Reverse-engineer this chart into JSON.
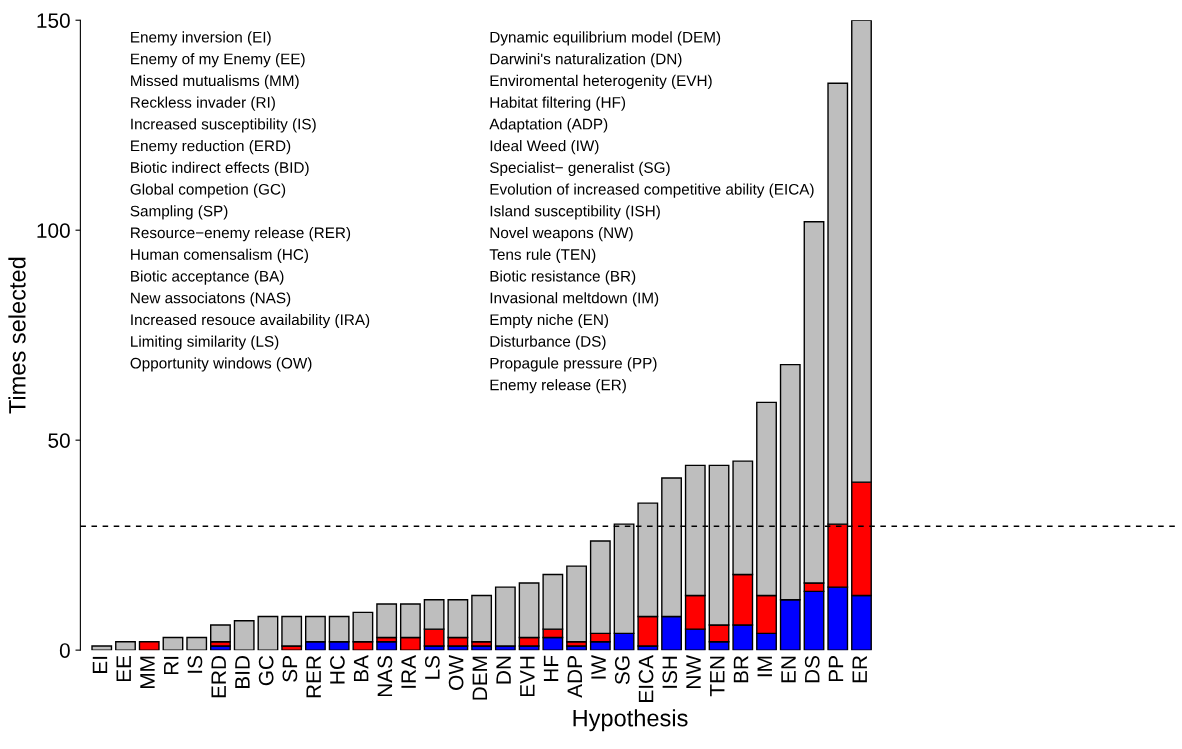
{
  "chart_data": {
    "type": "bar",
    "stacked": true,
    "xlabel": "Hypothesis",
    "ylabel": "Times selected",
    "categories": [
      "EI",
      "EE",
      "MM",
      "RI",
      "IS",
      "ERD",
      "BID",
      "GC",
      "SP",
      "RER",
      "HC",
      "BA",
      "NAS",
      "IRA",
      "LS",
      "OW",
      "DEM",
      "DN",
      "EVH",
      "HF",
      "ADP",
      "IW",
      "SG",
      "EICA",
      "ISH",
      "NW",
      "TEN",
      "BR",
      "IM",
      "EN",
      "DS",
      "PP",
      "ER"
    ],
    "series": [
      {
        "color": "#0000ff",
        "values": [
          0,
          0,
          0,
          0,
          0,
          1,
          0,
          0,
          0,
          2,
          2,
          0,
          2,
          0,
          1,
          1,
          1,
          1,
          1,
          3,
          1,
          2,
          4,
          1,
          8,
          5,
          2,
          6,
          4,
          12,
          14,
          15,
          13
        ]
      },
      {
        "color": "#ff0000",
        "values": [
          0,
          0,
          2,
          0,
          0,
          1,
          0,
          0,
          1,
          0,
          0,
          2,
          1,
          3,
          4,
          2,
          1,
          0,
          2,
          2,
          1,
          2,
          0,
          7,
          0,
          8,
          4,
          12,
          9,
          0,
          2,
          15,
          27
        ]
      },
      {
        "color": "#bebebe",
        "values": [
          1,
          2,
          0,
          3,
          3,
          4,
          7,
          8,
          7,
          6,
          6,
          7,
          8,
          8,
          7,
          9,
          11,
          14,
          13,
          13,
          18,
          22,
          26,
          27,
          33,
          31,
          38,
          27,
          46,
          56,
          86,
          105,
          110
        ]
      }
    ],
    "ylim": [
      0,
      150
    ],
    "yticks": [
      0,
      50,
      100,
      150
    ],
    "ref_lines": [
      {
        "axis": "y",
        "value": 29.5,
        "color": "#000000",
        "line_style": "dashed"
      }
    ],
    "annotations": [
      "Enemy inversion (EI)",
      "Enemy of my Enemy (EE)",
      "Missed mutualisms (MM)",
      "Reckless invader (RI)",
      "Increased susceptibility (IS)",
      "Enemy reduction (ERD)",
      "Biotic indirect effects (BID)",
      "Global competion (GC)",
      "Sampling (SP)",
      "Resource−enemy release (RER)",
      "Human comensalism (HC)",
      "Biotic acceptance (BA)",
      "New associatons (NAS)",
      "Increased resouce availability (IRA)",
      "Limiting similarity (LS)",
      "Opportunity windows (OW)",
      "Dynamic equilibrium model (DEM)",
      "Darwini's naturalization (DN)",
      "Enviromental heterogenity (EVH)",
      "Habitat filtering (HF)",
      "Adaptation (ADP)",
      "Ideal Weed (IW)",
      "Specialist− generalist (SG)",
      "Evolution of increased competitive ability (EICA)",
      "Island susceptibility (ISH)",
      "Novel weapons (NW)",
      "Tens rule (TEN)",
      "Biotic resistance (BR)",
      "Invasional meltdown (IM)",
      "Empty niche (EN)",
      "Disturbance (DS)",
      "Propagule pressure (PP)",
      "Enemy release (ER)"
    ],
    "grid": false,
    "legend": false
  }
}
